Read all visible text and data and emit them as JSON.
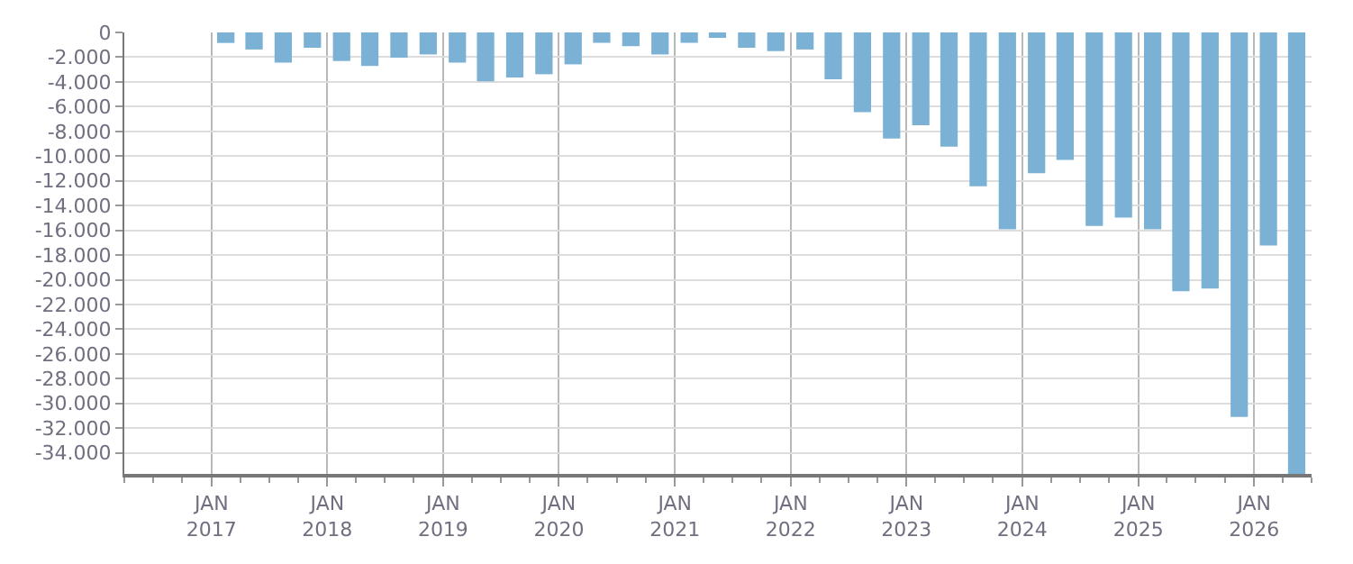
{
  "chart_data": {
    "type": "bar",
    "color": "#7ab1d4",
    "x": [
      "2017-02-15",
      "2017-05-15",
      "2017-08-15",
      "2017-11-15",
      "2018-02-15",
      "2018-05-15",
      "2018-08-15",
      "2018-11-15",
      "2019-02-15",
      "2019-05-15",
      "2019-08-15",
      "2019-11-15",
      "2020-02-15",
      "2020-05-15",
      "2020-08-15",
      "2020-11-15",
      "2021-02-15",
      "2021-05-15",
      "2021-08-15",
      "2021-11-15",
      "2022-02-15",
      "2022-05-15",
      "2022-08-15",
      "2022-11-15",
      "2023-02-15",
      "2023-05-15",
      "2023-08-15",
      "2023-11-15",
      "2024-02-15",
      "2024-05-15",
      "2024-08-15",
      "2024-11-15",
      "2025-02-15",
      "2025-05-15",
      "2025-08-15",
      "2025-11-15",
      "2026-02-15",
      "2026-05-15"
    ],
    "values": [
      -850,
      -1380,
      -2440,
      -1240,
      -2310,
      -2710,
      -2040,
      -1780,
      -2440,
      -3960,
      -3640,
      -3380,
      -2580,
      -840,
      -1110,
      -1780,
      -840,
      -440,
      -1240,
      -1510,
      -1380,
      -3780,
      -6440,
      -8580,
      -7510,
      -9240,
      -12440,
      -15910,
      -11380,
      -10310,
      -15640,
      -14980,
      -15910,
      -20930,
      -20710,
      -31100,
      -17240,
      -35700
    ],
    "xlim": [
      "2016-04-01",
      "2026-07-01"
    ],
    "xticks": [
      {
        "value": "2017-01-01",
        "label": "JAN\n2017"
      },
      {
        "value": "2018-01-01",
        "label": "JAN\n2018"
      },
      {
        "value": "2019-01-01",
        "label": "JAN\n2019"
      },
      {
        "value": "2020-01-01",
        "label": "JAN\n2020"
      },
      {
        "value": "2021-01-01",
        "label": "JAN\n2021"
      },
      {
        "value": "2022-01-01",
        "label": "JAN\n2022"
      },
      {
        "value": "2023-01-01",
        "label": "JAN\n2023"
      },
      {
        "value": "2024-01-01",
        "label": "JAN\n2024"
      },
      {
        "value": "2025-01-01",
        "label": "JAN\n2025"
      },
      {
        "value": "2026-01-01",
        "label": "JAN\n2026"
      }
    ],
    "ylim": [
      -35700,
      0
    ],
    "yticks": [
      0,
      {
        "value": -2000,
        "label": "-2.000"
      },
      {
        "value": -4000,
        "label": "-4.000"
      },
      {
        "value": -6000,
        "label": "-6.000"
      },
      {
        "value": -8000,
        "label": "-8.000"
      },
      {
        "value": -10000,
        "label": "-10.000"
      },
      {
        "value": -12000,
        "label": "-12.000"
      },
      {
        "value": -14000,
        "label": "-14.000"
      },
      {
        "value": -16000,
        "label": "-16.000"
      },
      {
        "value": -18000,
        "label": "-18.000"
      },
      {
        "value": -20000,
        "label": "-20.000"
      },
      {
        "value": -22000,
        "label": "-22.000"
      },
      {
        "value": -24000,
        "label": "-24.000"
      },
      {
        "value": -26000,
        "label": "-26.000"
      },
      {
        "value": -28000,
        "label": "-28.000"
      },
      {
        "value": -30000,
        "label": "-30.000"
      },
      {
        "value": -32000,
        "label": "-32.000"
      },
      {
        "value": -34000,
        "label": "-34.000"
      }
    ],
    "grid": true
  }
}
